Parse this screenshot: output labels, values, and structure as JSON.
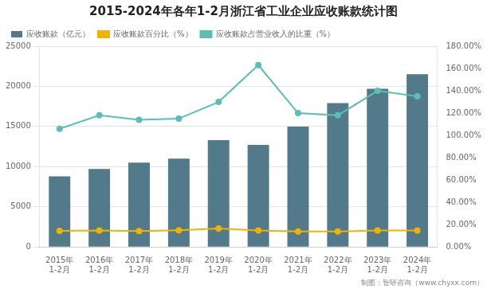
{
  "chart_data": {
    "type": "bar",
    "title": "2015-2024年各年1-2月浙江省工业企业应收账款统计图",
    "categories": [
      [
        "2015年",
        "1-2月"
      ],
      [
        "2016年",
        "1-2月"
      ],
      [
        "2017年",
        "1-2月"
      ],
      [
        "2018年",
        "1-2月"
      ],
      [
        "2019年",
        "1-2月"
      ],
      [
        "2020年",
        "1-2月"
      ],
      [
        "2021年",
        "1-2月"
      ],
      [
        "2022年",
        "1-2月"
      ],
      [
        "2023年",
        "1-2月"
      ],
      [
        "2024年",
        "1-2月"
      ]
    ],
    "series": [
      {
        "name": "应收账款（亿元）",
        "type": "bar",
        "color": "#527a8a",
        "values": [
          8800,
          9700,
          10500,
          11000,
          13300,
          12700,
          15000,
          17900,
          19700,
          21500
        ]
      },
      {
        "name": "应收账款百分比（%）",
        "type": "line",
        "axis": "y2",
        "marker": "circle",
        "color": "#f0b400",
        "values": [
          14.5,
          14.8,
          14.2,
          15.0,
          16.5,
          14.8,
          13.8,
          13.8,
          14.8,
          14.8
        ]
      },
      {
        "name": "应收账款占营业收入的比重（%）",
        "type": "line",
        "axis": "y2",
        "marker": "circle",
        "color": "#5bbfb5",
        "values": [
          106,
          118,
          114,
          115,
          130,
          163,
          120,
          118,
          140,
          135
        ]
      }
    ],
    "ylim": [
      0,
      25000
    ],
    "yticks": [
      0,
      5000,
      10000,
      15000,
      20000,
      25000
    ],
    "y2lim": [
      0,
      180
    ],
    "y2ticks": [
      {
        "value": 0,
        "label": "0.00%"
      },
      {
        "value": 20,
        "label": "20.00%"
      },
      {
        "value": 40,
        "label": "40.00%"
      },
      {
        "value": 60,
        "label": "60.00%"
      },
      {
        "value": 80,
        "label": "80.00%"
      },
      {
        "value": 100,
        "label": "100.00%"
      },
      {
        "value": 120,
        "label": "120.00%"
      },
      {
        "value": 140,
        "label": "140.00%"
      },
      {
        "value": 160,
        "label": "160.00%"
      },
      {
        "value": 180,
        "label": "180.00%"
      }
    ],
    "grid": true,
    "legend": "upper left",
    "annotations": [
      "制图：智研咨询（www.chyxx.com）"
    ]
  }
}
